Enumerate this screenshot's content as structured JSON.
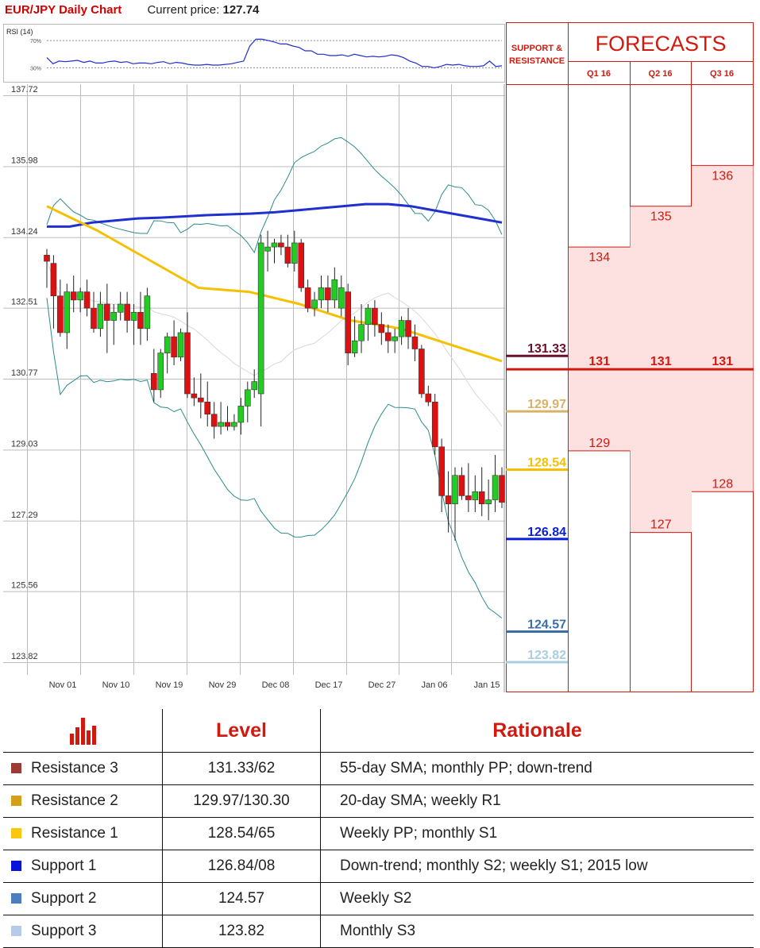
{
  "header": {
    "chart_title": "EUR/JPY Daily Chart",
    "price_label": "Current price:",
    "price_value": "127.74"
  },
  "rsi": {
    "label": "RSI (14)",
    "level_high": "70%",
    "level_low": "30%",
    "values": [
      45,
      36,
      40,
      39,
      40,
      41,
      38,
      40,
      37,
      37,
      39,
      40,
      38,
      39,
      36,
      37,
      37,
      36,
      38,
      39,
      36,
      38,
      37,
      35,
      34,
      34,
      35,
      34,
      34,
      35,
      36,
      38,
      40,
      62,
      72,
      72,
      70,
      68,
      65,
      65,
      62,
      60,
      55,
      55,
      50,
      50,
      48,
      48,
      49,
      47,
      50,
      48,
      46,
      47,
      46,
      47,
      49,
      48,
      45,
      40,
      37,
      32,
      32,
      30,
      32,
      35,
      34,
      35,
      33,
      32,
      32,
      33,
      40,
      32,
      33
    ]
  },
  "panel": {
    "sr_title_line1": "SUPPORT &",
    "sr_title_line2": "RESISTANCE",
    "forecasts_title": "FORECASTS",
    "quarters": [
      "Q1 16",
      "Q2 16",
      "Q3 16"
    ]
  },
  "colors": {
    "accent_red": "#d11a0f",
    "bull": "#22cc22",
    "bear": "#dd1111",
    "sma_yellow": "#f5c000",
    "sma_blue": "#1f2fd0",
    "band_teal": "#2a8c8a"
  },
  "chart_data": {
    "type": "candlestick",
    "title": "EUR/JPY Daily Chart",
    "ylim": [
      123.3,
      138.2
    ],
    "y_ticks": [
      "137.72",
      "135.98",
      "134.24",
      "132.51",
      "130.77",
      "129.03",
      "127.29",
      "125.56",
      "123.82"
    ],
    "x_ticks": [
      "Nov 01",
      "Nov 10",
      "Nov 19",
      "Nov 29",
      "Dec 08",
      "Dec 17",
      "Dec 27",
      "Jan 06",
      "Jan 15"
    ],
    "candles": [
      [
        133.8,
        133.95,
        133.0,
        133.65
      ],
      [
        133.6,
        133.8,
        132.0,
        132.8
      ],
      [
        132.8,
        133.2,
        131.8,
        131.9
      ],
      [
        131.9,
        133.1,
        131.5,
        132.9
      ],
      [
        132.9,
        133.3,
        132.4,
        132.7
      ],
      [
        132.7,
        133.0,
        132.4,
        132.9
      ],
      [
        132.9,
        133.2,
        132.3,
        132.5
      ],
      [
        132.5,
        132.9,
        131.9,
        132.0
      ],
      [
        132.0,
        132.9,
        131.8,
        132.6
      ],
      [
        132.6,
        133.1,
        131.4,
        132.2
      ],
      [
        132.2,
        132.6,
        131.6,
        132.4
      ],
      [
        132.4,
        132.9,
        132.2,
        132.6
      ],
      [
        132.6,
        132.9,
        131.9,
        132.2
      ],
      [
        132.2,
        132.6,
        131.6,
        132.4
      ],
      [
        132.4,
        132.9,
        131.6,
        132.0
      ],
      [
        132.0,
        133.0,
        131.7,
        132.8
      ],
      [
        130.9,
        131.5,
        130.2,
        130.5
      ],
      [
        130.5,
        131.5,
        130.3,
        131.4
      ],
      [
        131.4,
        131.9,
        130.9,
        131.8
      ],
      [
        131.8,
        132.2,
        131.1,
        131.3
      ],
      [
        131.3,
        132.0,
        131.2,
        131.9
      ],
      [
        131.9,
        132.4,
        130.3,
        130.4
      ],
      [
        130.4,
        130.8,
        130.1,
        130.3
      ],
      [
        130.3,
        130.9,
        129.8,
        130.2
      ],
      [
        130.2,
        130.7,
        129.6,
        129.9
      ],
      [
        129.9,
        130.2,
        129.3,
        129.6
      ],
      [
        129.6,
        130.2,
        129.4,
        129.7
      ],
      [
        129.7,
        130.1,
        129.5,
        129.6
      ],
      [
        129.6,
        129.9,
        129.5,
        129.7
      ],
      [
        129.7,
        130.3,
        129.4,
        130.1
      ],
      [
        130.1,
        130.7,
        129.7,
        130.5
      ],
      [
        130.5,
        131.0,
        130.3,
        130.7
      ],
      [
        130.4,
        134.3,
        129.6,
        134.1
      ],
      [
        133.9,
        134.4,
        133.4,
        134.0
      ],
      [
        134.0,
        134.2,
        133.6,
        134.1
      ],
      [
        134.1,
        134.3,
        133.8,
        134.0
      ],
      [
        134.0,
        134.3,
        133.5,
        133.6
      ],
      [
        133.6,
        134.4,
        133.4,
        134.1
      ],
      [
        134.1,
        134.2,
        132.9,
        133.0
      ],
      [
        133.0,
        133.2,
        132.4,
        132.5
      ],
      [
        132.5,
        132.9,
        132.3,
        132.7
      ],
      [
        132.7,
        133.3,
        132.5,
        133.0
      ],
      [
        133.0,
        133.3,
        132.4,
        132.7
      ],
      [
        132.7,
        133.5,
        132.5,
        133.2
      ],
      [
        132.5,
        133.3,
        132.3,
        133.0
      ],
      [
        132.9,
        133.1,
        131.1,
        131.4
      ],
      [
        131.4,
        132.3,
        131.3,
        131.7
      ],
      [
        131.7,
        132.6,
        131.4,
        132.1
      ],
      [
        132.1,
        132.6,
        131.7,
        132.5
      ],
      [
        132.5,
        132.7,
        131.8,
        132.1
      ],
      [
        132.1,
        132.4,
        131.6,
        131.9
      ],
      [
        131.9,
        132.1,
        131.4,
        131.7
      ],
      [
        131.7,
        132.0,
        131.4,
        131.8
      ],
      [
        131.8,
        132.3,
        131.6,
        132.2
      ],
      [
        132.2,
        132.5,
        131.5,
        131.8
      ],
      [
        131.8,
        132.1,
        131.2,
        131.5
      ],
      [
        131.5,
        131.6,
        130.3,
        130.4
      ],
      [
        130.4,
        130.6,
        130.1,
        130.2
      ],
      [
        130.2,
        130.4,
        128.9,
        129.1
      ],
      [
        129.1,
        129.3,
        127.5,
        127.9
      ],
      [
        127.9,
        128.5,
        127.0,
        127.7
      ],
      [
        127.7,
        128.6,
        126.8,
        128.4
      ],
      [
        128.4,
        128.6,
        127.8,
        127.9
      ],
      [
        127.9,
        128.7,
        127.5,
        127.8
      ],
      [
        127.8,
        128.4,
        127.5,
        128.0
      ],
      [
        128.0,
        128.6,
        127.4,
        127.7
      ],
      [
        127.7,
        128.3,
        127.3,
        127.8
      ],
      [
        127.8,
        128.9,
        127.5,
        128.4
      ],
      [
        128.4,
        128.6,
        127.6,
        127.74
      ]
    ],
    "candle_x_positions_note_removed": "",
    "sma_blue": [
      134.5,
      134.5,
      134.6,
      134.65,
      134.7,
      134.72,
      134.75,
      134.78,
      134.8,
      134.82,
      134.85,
      134.9,
      134.95,
      135.0,
      135.05,
      135.05,
      135.0,
      134.9,
      134.8,
      134.7,
      134.6
    ],
    "sma_yellow": [
      135.0,
      134.4,
      133.7,
      133.0,
      132.9,
      132.6,
      132.2,
      132.0,
      131.6,
      131.2
    ],
    "support_resistance": [
      {
        "label": "131.33",
        "value": 131.33,
        "color": "#6b0f2b"
      },
      {
        "label": "129.97",
        "value": 129.97,
        "color": "#d8b266"
      },
      {
        "label": "128.54",
        "value": 128.54,
        "color": "#f5c000"
      },
      {
        "label": "126.84",
        "value": 126.84,
        "color": "#0b1fd6"
      },
      {
        "label": "124.57",
        "value": 124.57,
        "color": "#3a6fa5"
      },
      {
        "label": "123.82",
        "value": 123.82,
        "color": "#a8cfe0"
      }
    ],
    "forecasts": [
      {
        "quarter": "Q1 16",
        "high": 134,
        "mid": 131,
        "low": 129
      },
      {
        "quarter": "Q2 16",
        "high": 135,
        "mid": 131,
        "low": 127
      },
      {
        "quarter": "Q3 16",
        "high": 136,
        "mid": 131,
        "low": 128
      }
    ]
  },
  "table": {
    "head_level": "Level",
    "head_rationale": "Rationale",
    "rows": [
      {
        "name": "Resistance 3",
        "level": "131.33/62",
        "rationale": "55-day SMA; monthly PP; down-trend",
        "color": "#9b3b34"
      },
      {
        "name": "Resistance 2",
        "level": "129.97/130.30",
        "rationale": "20-day SMA; weekly R1",
        "color": "#d4a017"
      },
      {
        "name": "Resistance 1",
        "level": "128.54/65",
        "rationale": "Weekly PP; monthly S1",
        "color": "#f9c80e"
      },
      {
        "name": "Support 1",
        "level": "126.84/08",
        "rationale": "Down-trend; monthly S2; weekly S1; 2015 low",
        "color": "#0a14d8"
      },
      {
        "name": "Support 2",
        "level": "124.57",
        "rationale": "Weekly S2",
        "color": "#4a7fbf"
      },
      {
        "name": "Support 3",
        "level": "123.82",
        "rationale": "Monthly S3",
        "color": "#b6cbe8"
      }
    ]
  }
}
